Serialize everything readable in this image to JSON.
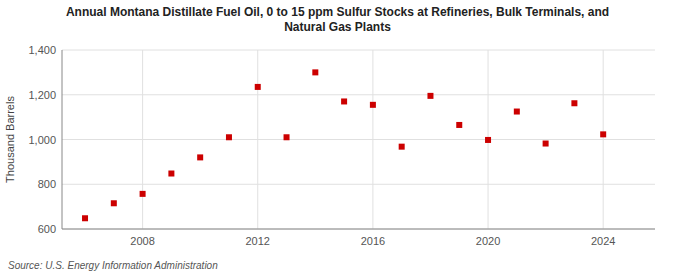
{
  "chart_data": {
    "type": "scatter",
    "title": "Annual Montana Distillate Fuel Oil, 0 to 15 ppm Sulfur Stocks at Refineries, Bulk Terminals, and\nNatural Gas Plants",
    "ylabel": "Thousand Barrels",
    "source": "Source: U.S. Energy Information Administration",
    "x": [
      2006,
      2007,
      2008,
      2009,
      2010,
      2011,
      2012,
      2013,
      2014,
      2015,
      2016,
      2017,
      2018,
      2019,
      2020,
      2021,
      2022,
      2023,
      2024
    ],
    "values": [
      648,
      715,
      757,
      848,
      920,
      1010,
      1235,
      1010,
      1300,
      1170,
      1155,
      968,
      1195,
      1065,
      998,
      1125,
      982,
      1162,
      1023
    ],
    "color": "#cc0000",
    "marker": "square",
    "xlim": [
      2005.2,
      2025.8
    ],
    "xticks": [
      2008,
      2012,
      2016,
      2020,
      2024
    ],
    "ylim": [
      600,
      1400
    ],
    "yticks": [
      600,
      800,
      {
        "value": 1000,
        "label": "1,000"
      },
      {
        "value": 1200,
        "label": "1,200"
      },
      {
        "value": 1400,
        "label": "1,400"
      }
    ],
    "grid": true
  }
}
